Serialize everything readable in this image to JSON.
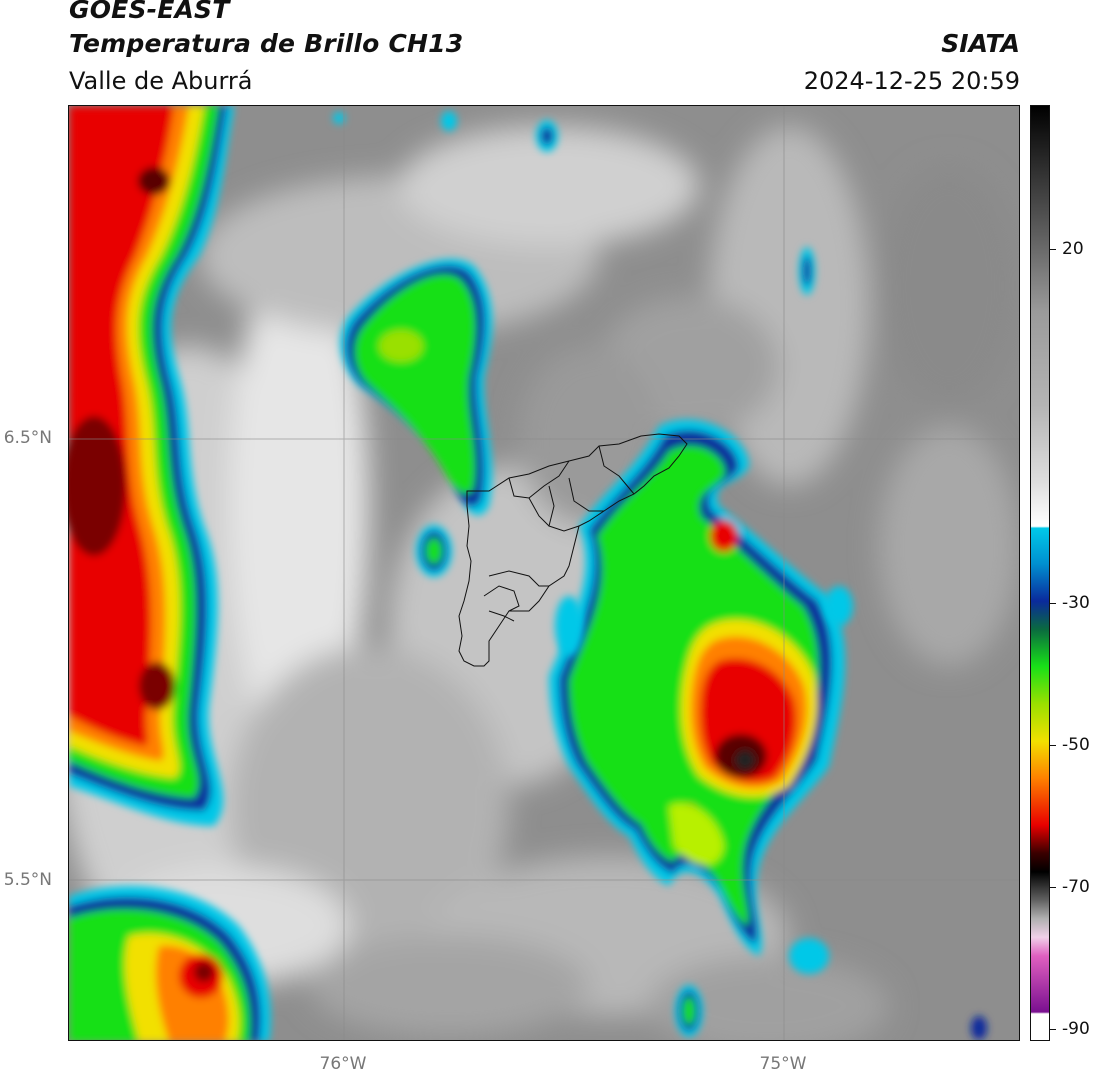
{
  "header": {
    "satellite": "GOES-EAST",
    "product": "Temperatura de Brillo CH13",
    "region": "Valle de Aburrá",
    "brand": "SIATA",
    "datetime": "2024-12-25 20:59"
  },
  "axes": {
    "lat_ticks": [
      "6.5°N",
      "5.5°N"
    ],
    "lon_ticks": [
      "76°W",
      "75°W"
    ]
  },
  "colorbar": {
    "ticks": [
      "20",
      "-30",
      "-50",
      "-70",
      "-90"
    ],
    "colors": {
      "warm_surface": "#9a9a9a",
      "cold_cloud_cyan": "#00c8e8",
      "blue": "#0a2a9c",
      "green": "#18e018",
      "yellow": "#f2e000",
      "orange": "#ff8000",
      "red": "#e80000",
      "dark_red": "#3a0000",
      "magenta": "#e060c0",
      "purple": "#7a1090"
    }
  }
}
